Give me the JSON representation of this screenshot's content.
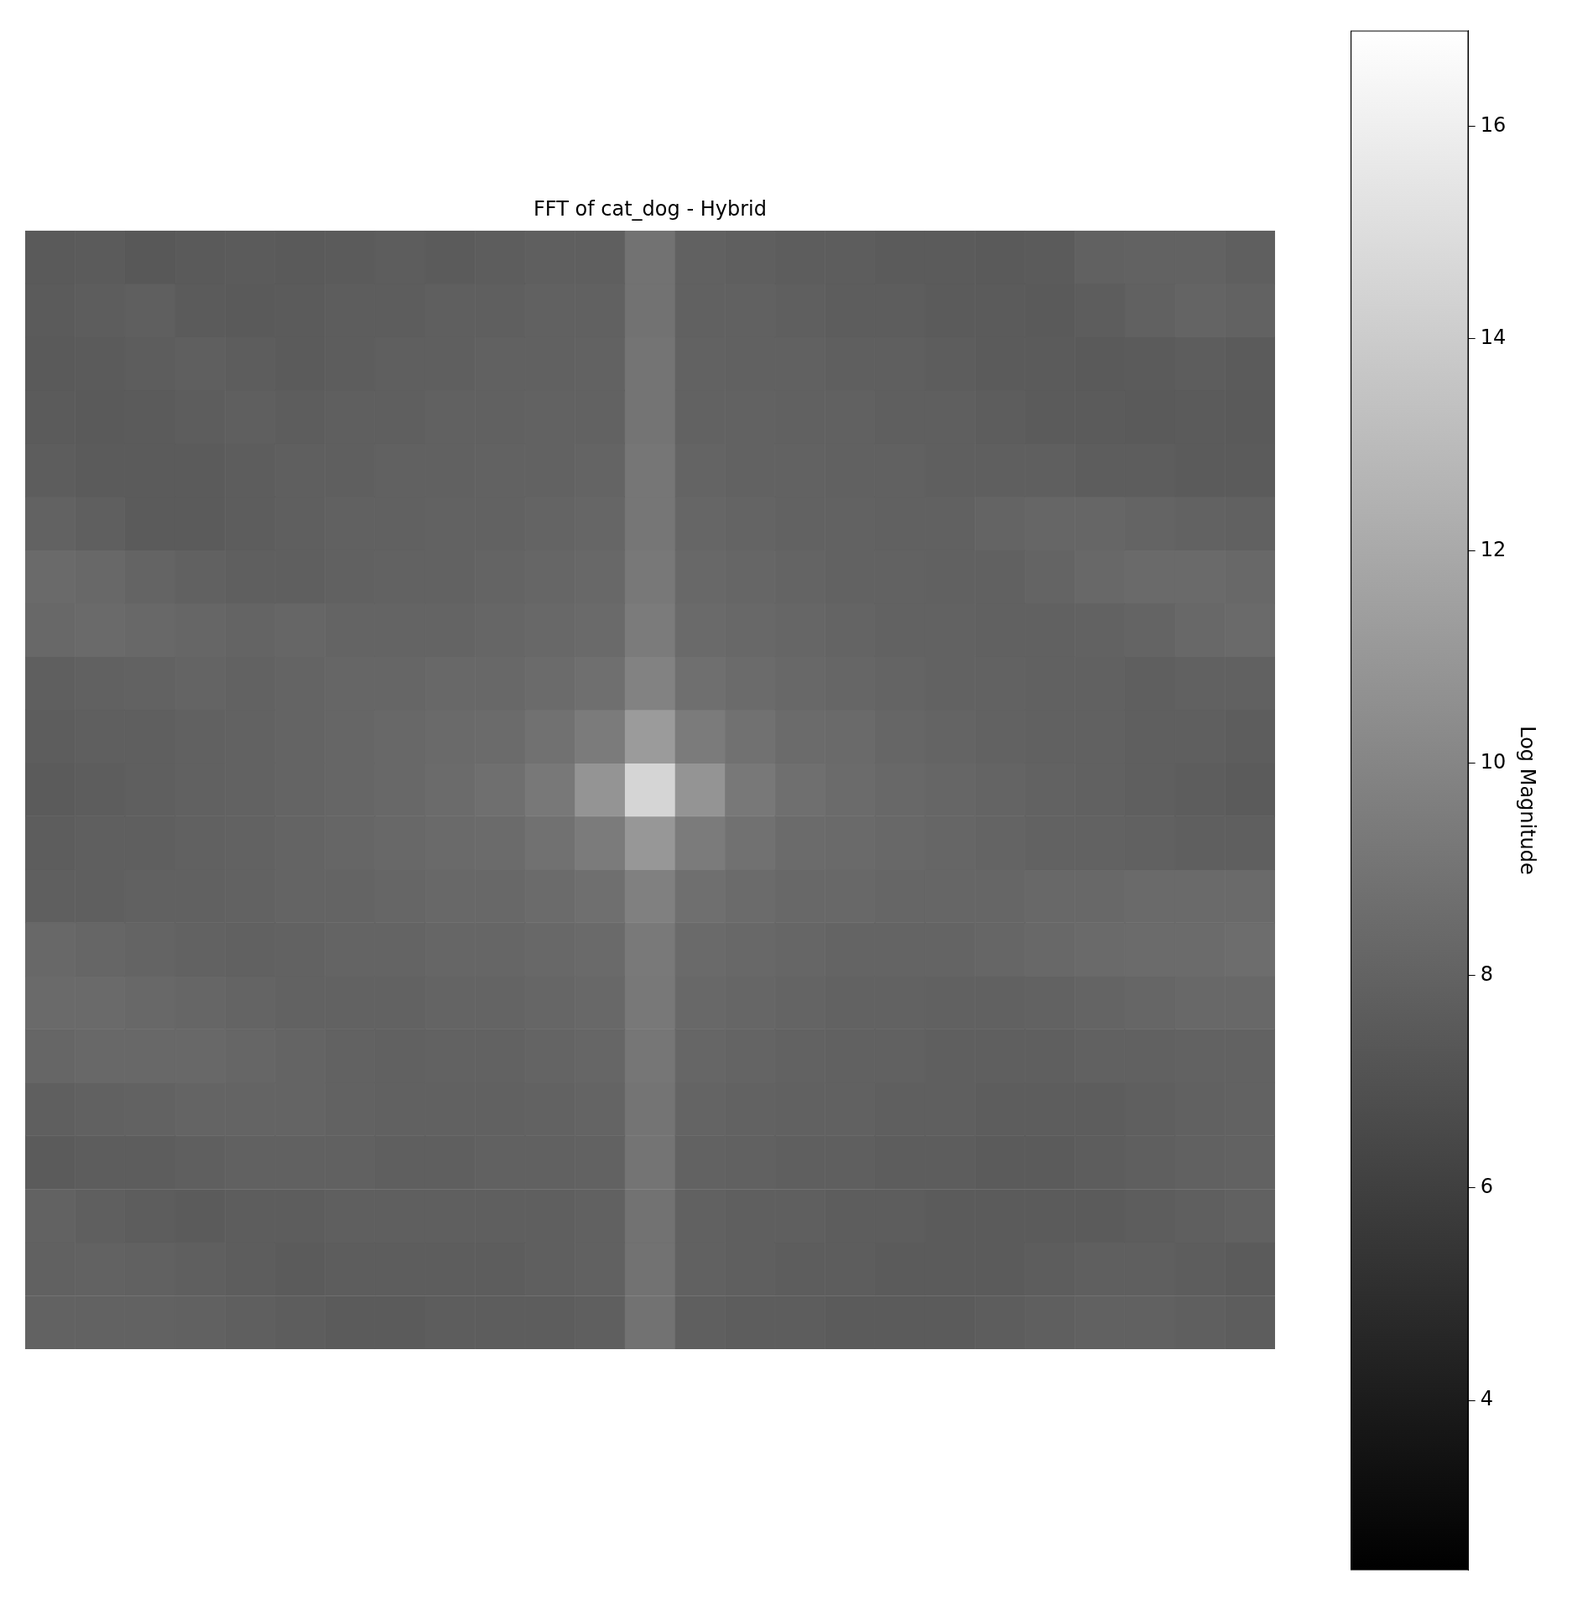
{
  "chart_data": {
    "type": "heatmap",
    "title": "FFT of cat_dog - Hybrid",
    "color": "gray",
    "tick_labels": false,
    "colorbar": {
      "label": "Log Magnitude",
      "range": [
        2.4,
        16.9
      ],
      "ticks": [
        4,
        6,
        8,
        10,
        12,
        14,
        16
      ]
    },
    "cells": [
      [
        7.5,
        7.6,
        7.4,
        7.5,
        7.6,
        7.5,
        7.6,
        7.7,
        7.6,
        7.7,
        7.8,
        7.8,
        8.9,
        7.9,
        7.8,
        7.7,
        7.7,
        7.6,
        7.6,
        7.5,
        7.6,
        7.9,
        8.0,
        8.0,
        7.8
      ],
      [
        7.6,
        7.7,
        7.8,
        7.6,
        7.5,
        7.6,
        7.7,
        7.7,
        7.8,
        7.8,
        7.9,
        7.9,
        8.9,
        7.9,
        7.9,
        7.8,
        7.7,
        7.7,
        7.6,
        7.6,
        7.5,
        7.7,
        7.9,
        8.1,
        8.0
      ],
      [
        7.5,
        7.6,
        7.7,
        7.8,
        7.7,
        7.6,
        7.7,
        7.8,
        7.8,
        7.9,
        7.9,
        8.0,
        9.0,
        8.0,
        7.9,
        7.9,
        7.8,
        7.8,
        7.7,
        7.6,
        7.6,
        7.5,
        7.6,
        7.7,
        7.6
      ],
      [
        7.6,
        7.5,
        7.6,
        7.7,
        7.8,
        7.7,
        7.8,
        7.8,
        7.9,
        7.9,
        8.0,
        8.0,
        9.0,
        8.0,
        8.0,
        7.9,
        7.9,
        7.8,
        7.8,
        7.7,
        7.6,
        7.6,
        7.5,
        7.6,
        7.5
      ],
      [
        7.7,
        7.6,
        7.6,
        7.6,
        7.7,
        7.8,
        7.8,
        7.9,
        7.9,
        8.0,
        8.0,
        8.1,
        9.1,
        8.1,
        8.0,
        8.0,
        7.9,
        7.9,
        7.8,
        7.8,
        7.8,
        7.7,
        7.7,
        7.6,
        7.6
      ],
      [
        8.0,
        7.8,
        7.6,
        7.6,
        7.7,
        7.8,
        7.9,
        7.9,
        8.0,
        8.0,
        8.1,
        8.2,
        9.1,
        8.2,
        8.1,
        8.0,
        8.0,
        7.9,
        7.9,
        8.1,
        8.2,
        8.2,
        8.1,
        8.0,
        7.9
      ],
      [
        8.4,
        8.3,
        8.1,
        7.9,
        7.8,
        7.8,
        7.9,
        8.0,
        8.0,
        8.1,
        8.2,
        8.3,
        9.2,
        8.3,
        8.2,
        8.1,
        8.0,
        8.0,
        7.9,
        7.9,
        8.1,
        8.3,
        8.4,
        8.4,
        8.3
      ],
      [
        8.3,
        8.4,
        8.3,
        8.2,
        8.1,
        8.2,
        8.1,
        8.1,
        8.1,
        8.2,
        8.3,
        8.4,
        9.4,
        8.4,
        8.3,
        8.2,
        8.1,
        8.0,
        8.0,
        7.9,
        7.9,
        8.0,
        8.1,
        8.3,
        8.4
      ],
      [
        7.8,
        7.9,
        8.0,
        8.1,
        8.0,
        8.1,
        8.2,
        8.2,
        8.3,
        8.3,
        8.5,
        8.7,
        9.8,
        8.7,
        8.5,
        8.3,
        8.2,
        8.1,
        8.0,
        8.0,
        7.9,
        7.9,
        7.8,
        7.9,
        7.9
      ],
      [
        7.7,
        7.8,
        7.8,
        7.9,
        8.0,
        8.1,
        8.2,
        8.3,
        8.4,
        8.5,
        8.8,
        9.4,
        11.2,
        9.4,
        8.8,
        8.5,
        8.4,
        8.2,
        8.1,
        8.0,
        7.9,
        7.9,
        7.8,
        7.8,
        7.7
      ],
      [
        7.6,
        7.7,
        7.8,
        7.9,
        8.0,
        8.1,
        8.2,
        8.3,
        8.5,
        8.7,
        9.2,
        10.8,
        14.5,
        10.8,
        9.2,
        8.7,
        8.5,
        8.3,
        8.2,
        8.1,
        8.0,
        7.9,
        7.8,
        7.7,
        7.6
      ],
      [
        7.7,
        7.8,
        7.8,
        7.9,
        8.0,
        8.1,
        8.2,
        8.3,
        8.4,
        8.5,
        8.8,
        9.4,
        11.0,
        9.4,
        8.8,
        8.5,
        8.4,
        8.3,
        8.2,
        8.1,
        8.0,
        8.0,
        7.9,
        7.8,
        7.8
      ],
      [
        7.8,
        7.8,
        7.9,
        7.9,
        8.0,
        8.1,
        8.1,
        8.2,
        8.3,
        8.3,
        8.5,
        8.7,
        9.7,
        8.7,
        8.5,
        8.3,
        8.3,
        8.2,
        8.2,
        8.2,
        8.3,
        8.3,
        8.4,
        8.4,
        8.4
      ],
      [
        8.3,
        8.2,
        8.1,
        8.0,
        7.9,
        8.0,
        8.1,
        8.1,
        8.2,
        8.2,
        8.3,
        8.4,
        9.3,
        8.4,
        8.3,
        8.2,
        8.1,
        8.1,
        8.1,
        8.2,
        8.3,
        8.4,
        8.5,
        8.5,
        8.6
      ],
      [
        8.4,
        8.4,
        8.3,
        8.2,
        8.1,
        8.0,
        8.0,
        8.0,
        8.1,
        8.1,
        8.2,
        8.3,
        9.2,
        8.3,
        8.2,
        8.1,
        8.0,
        8.0,
        7.9,
        7.9,
        8.0,
        8.1,
        8.2,
        8.3,
        8.3
      ],
      [
        8.2,
        8.3,
        8.3,
        8.3,
        8.2,
        8.1,
        8.0,
        7.9,
        8.0,
        8.0,
        8.1,
        8.2,
        9.1,
        8.2,
        8.1,
        8.0,
        7.9,
        7.9,
        7.8,
        7.8,
        7.8,
        7.9,
        7.9,
        8.0,
        8.0
      ],
      [
        7.8,
        7.9,
        8.0,
        8.1,
        8.1,
        8.1,
        8.0,
        7.9,
        7.9,
        7.9,
        8.0,
        8.1,
        9.0,
        8.1,
        8.0,
        7.9,
        7.9,
        7.8,
        7.8,
        7.7,
        7.7,
        7.7,
        7.8,
        7.9,
        8.0
      ],
      [
        7.6,
        7.7,
        7.7,
        7.8,
        7.9,
        7.9,
        7.9,
        7.8,
        7.8,
        7.9,
        7.9,
        8.0,
        9.0,
        8.0,
        7.9,
        7.8,
        7.8,
        7.7,
        7.7,
        7.6,
        7.6,
        7.7,
        7.8,
        7.9,
        8.0
      ],
      [
        8.0,
        7.8,
        7.7,
        7.6,
        7.7,
        7.7,
        7.8,
        7.8,
        7.8,
        7.8,
        7.8,
        7.9,
        8.9,
        7.9,
        7.8,
        7.8,
        7.7,
        7.7,
        7.6,
        7.6,
        7.6,
        7.6,
        7.7,
        7.8,
        7.9
      ],
      [
        7.9,
        8.0,
        7.9,
        7.8,
        7.7,
        7.6,
        7.7,
        7.7,
        7.7,
        7.7,
        7.8,
        7.9,
        8.9,
        7.9,
        7.8,
        7.7,
        7.7,
        7.6,
        7.6,
        7.6,
        7.7,
        7.8,
        7.8,
        7.7,
        7.6
      ],
      [
        8.0,
        8.0,
        8.0,
        7.9,
        7.8,
        7.7,
        7.6,
        7.6,
        7.7,
        7.7,
        7.7,
        7.8,
        8.9,
        7.8,
        7.7,
        7.7,
        7.6,
        7.6,
        7.6,
        7.7,
        7.8,
        7.9,
        7.9,
        7.8,
        7.7
      ]
    ]
  }
}
